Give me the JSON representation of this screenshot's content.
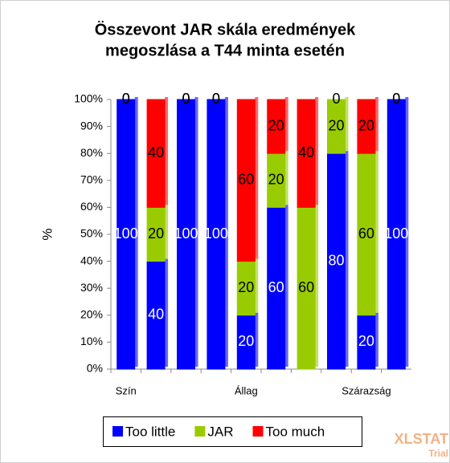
{
  "chart_data": {
    "type": "stacked-bar",
    "title": [
      "Összevont JAR skála eredmények",
      "megoszlása a T44 minta esetén"
    ],
    "y_label": "%",
    "categories": [
      "Szín",
      null,
      null,
      null,
      "Állag",
      null,
      null,
      null,
      "Szárazság",
      null
    ],
    "series": [
      {
        "name": "Too little",
        "color": "#0000ff",
        "values": [
          100,
          40,
          100,
          100,
          20,
          60,
          0,
          80,
          20,
          100
        ]
      },
      {
        "name": "JAR",
        "color": "#99cc00",
        "values": [
          0,
          20,
          0,
          0,
          20,
          20,
          60,
          20,
          60,
          0
        ]
      },
      {
        "name": "Too much",
        "color": "#ff0000",
        "values": [
          0,
          40,
          0,
          0,
          60,
          20,
          40,
          0,
          20,
          0
        ]
      }
    ],
    "ylim": [
      0,
      100
    ],
    "yticks": [
      {
        "value": 0,
        "label": "0%"
      },
      {
        "value": 10,
        "label": "10%"
      },
      {
        "value": 20,
        "label": "20%"
      },
      {
        "value": 30,
        "label": "30%"
      },
      {
        "value": 40,
        "label": "40%"
      },
      {
        "value": 50,
        "label": "50%"
      },
      {
        "value": 60,
        "label": "60%"
      },
      {
        "value": 70,
        "label": "70%"
      },
      {
        "value": 80,
        "label": "80%"
      },
      {
        "value": 90,
        "label": "90%"
      },
      {
        "value": 100,
        "label": "100%"
      }
    ],
    "watermark": [
      "XLSTAT",
      "Trial"
    ]
  }
}
